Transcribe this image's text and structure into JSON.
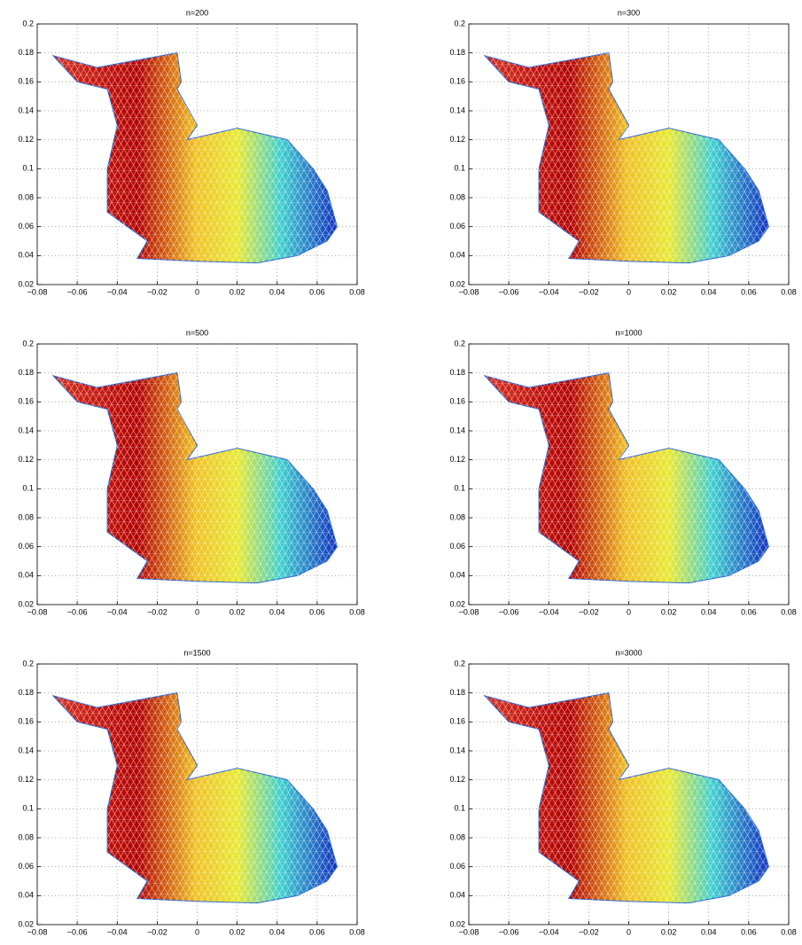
{
  "chart_data": [
    {
      "type": "mesh",
      "title": "n=200",
      "xlim": [
        -0.08,
        0.08
      ],
      "ylim": [
        0.02,
        0.2
      ],
      "xticks": [
        {
          "value": -0.08,
          "label": "−0.08"
        },
        {
          "value": -0.06,
          "label": "−0.06"
        },
        {
          "value": -0.04,
          "label": "−0.04"
        },
        {
          "value": -0.02,
          "label": "−0.02"
        },
        0,
        0.02,
        0.04,
        0.06,
        0.08
      ],
      "yticks": [
        0.02,
        0.04,
        0.06,
        0.08,
        0.1,
        0.12,
        0.14,
        0.16,
        0.18,
        0.2
      ],
      "grid": true
    },
    {
      "type": "mesh",
      "title": "n=300",
      "xlim": [
        -0.08,
        0.08
      ],
      "ylim": [
        0.02,
        0.2
      ],
      "xticks": [
        {
          "value": -0.08,
          "label": "−0.08"
        },
        {
          "value": -0.06,
          "label": "−0.06"
        },
        {
          "value": -0.04,
          "label": "−0.04"
        },
        {
          "value": -0.02,
          "label": "−0.02"
        },
        0,
        0.02,
        0.04,
        0.06,
        0.08
      ],
      "yticks": [
        0.02,
        0.04,
        0.06,
        0.08,
        0.1,
        0.12,
        0.14,
        0.16,
        0.18,
        0.2
      ],
      "grid": true
    },
    {
      "type": "mesh",
      "title": "n=500",
      "xlim": [
        -0.08,
        0.08
      ],
      "ylim": [
        0.02,
        0.2
      ],
      "xticks": [
        {
          "value": -0.08,
          "label": "−0.08"
        },
        {
          "value": -0.06,
          "label": "−0.06"
        },
        {
          "value": -0.04,
          "label": "−0.04"
        },
        {
          "value": -0.02,
          "label": "−0.02"
        },
        0,
        0.02,
        0.04,
        0.06,
        0.08
      ],
      "yticks": [
        0.02,
        0.04,
        0.06,
        0.08,
        0.1,
        0.12,
        0.14,
        0.16,
        0.18,
        0.2
      ],
      "grid": true
    },
    {
      "type": "mesh",
      "title": "n=1000",
      "xlim": [
        -0.08,
        0.08
      ],
      "ylim": [
        0.02,
        0.2
      ],
      "xticks": [
        {
          "value": -0.08,
          "label": "−0.08"
        },
        {
          "value": -0.06,
          "label": "−0.06"
        },
        {
          "value": -0.04,
          "label": "−0.04"
        },
        {
          "value": -0.02,
          "label": "−0.02"
        },
        0,
        0.02,
        0.04,
        0.06,
        0.08
      ],
      "yticks": [
        0.02,
        0.04,
        0.06,
        0.08,
        0.1,
        0.12,
        0.14,
        0.16,
        0.18,
        0.2
      ],
      "grid": true
    },
    {
      "type": "mesh",
      "title": "n=1500",
      "xlim": [
        -0.08,
        0.08
      ],
      "ylim": [
        0.02,
        0.2
      ],
      "xticks": [
        {
          "value": -0.08,
          "label": "−0.08"
        },
        {
          "value": -0.06,
          "label": "−0.06"
        },
        {
          "value": -0.04,
          "label": "−0.04"
        },
        {
          "value": -0.02,
          "label": "−0.02"
        },
        0,
        0.02,
        0.04,
        0.06,
        0.08
      ],
      "yticks": [
        0.02,
        0.04,
        0.06,
        0.08,
        0.1,
        0.12,
        0.14,
        0.16,
        0.18,
        0.2
      ],
      "grid": true
    },
    {
      "type": "mesh",
      "title": "n=3000",
      "xlim": [
        -0.08,
        0.08
      ],
      "ylim": [
        0.02,
        0.2
      ],
      "xticks": [
        {
          "value": -0.08,
          "label": "−0.08"
        },
        {
          "value": -0.06,
          "label": "−0.06"
        },
        {
          "value": -0.04,
          "label": "−0.04"
        },
        {
          "value": -0.02,
          "label": "−0.02"
        },
        0,
        0.02,
        0.04,
        0.06,
        0.08
      ],
      "yticks": [
        0.02,
        0.04,
        0.06,
        0.08,
        0.1,
        0.12,
        0.14,
        0.16,
        0.18,
        0.2
      ],
      "grid": true
    }
  ]
}
